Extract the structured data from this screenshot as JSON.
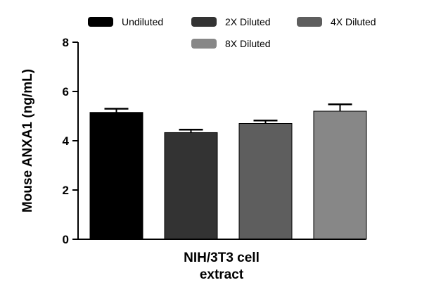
{
  "chart_data": {
    "type": "bar",
    "ylabel": "Mouse ANXA1 (ng/mL)",
    "xlabel_lines": [
      "NIH/3T3 cell",
      "extract"
    ],
    "ylim": [
      0,
      8
    ],
    "yticks": [
      0,
      2,
      4,
      6,
      8
    ],
    "legend_position": "top",
    "series": [
      {
        "name": "Undiluted",
        "value": 5.15,
        "error": 0.15,
        "color": "#000000"
      },
      {
        "name": "2X Diluted",
        "value": 4.33,
        "error": 0.12,
        "color": "#333333"
      },
      {
        "name": "4X Diluted",
        "value": 4.7,
        "error": 0.12,
        "color": "#5e5e5e"
      },
      {
        "name": "8X Diluted",
        "value": 5.2,
        "error": 0.28,
        "color": "#878787"
      }
    ]
  }
}
